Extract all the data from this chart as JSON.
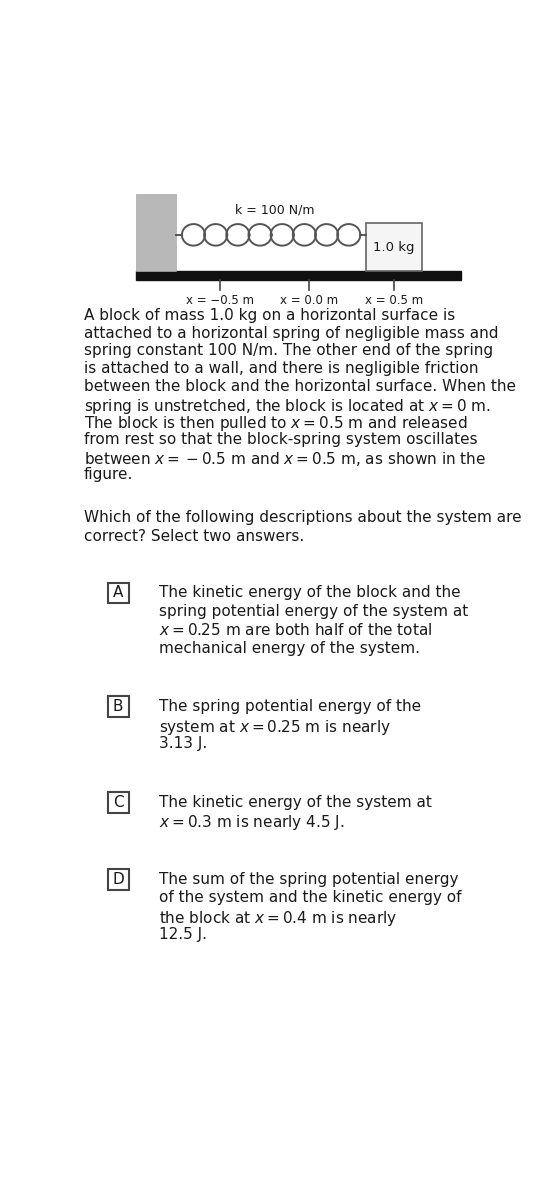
{
  "bg_color": "#ffffff",
  "text_color": "#1a1a1a",
  "diagram": {
    "wall_color": "#b8b8b8",
    "block_color": "#f5f5f5",
    "spring_color": "#555555",
    "floor_color": "#111111",
    "label_k": "k = 100 N/m",
    "label_mass": "1.0 kg",
    "label_x1": "x = −0.5 m",
    "label_x2": "x = 0.0 m",
    "label_x3": "x = 0.5 m"
  },
  "para_lines": [
    "A block of mass 1.0 kg on a horizontal surface is",
    "attached to a horizontal spring of negligible mass and",
    "spring constant 100 N/m. The other end of the spring",
    "is attached to a wall, and there is negligible friction",
    "between the block and the horizontal surface. When the",
    "spring is unstretched, the block is located at $x = 0$ m.",
    "The block is then pulled to $x = 0.5$ m and released",
    "from rest so that the block-spring system oscillates",
    "between $x = -0.5$ m and $x = 0.5$ m, as shown in the",
    "figure."
  ],
  "question_lines": [
    "Which of the following descriptions about the system are",
    "correct? Select two answers."
  ],
  "choices": [
    {
      "label": "A",
      "lines": [
        "The kinetic energy of the block and the",
        "spring potential energy of the system at",
        "$x = 0.25$ m are both half of the total",
        "mechanical energy of the system."
      ]
    },
    {
      "label": "B",
      "lines": [
        "The spring potential energy of the",
        "system at $x = 0.25$ m is nearly",
        "3.13 J."
      ]
    },
    {
      "label": "C",
      "lines": [
        "The kinetic energy of the system at",
        "$x = 0.3$ m is nearly 4.5 J."
      ]
    },
    {
      "label": "D",
      "lines": [
        "The sum of the spring potential energy",
        "of the system and the kinetic energy of",
        "the block at $x = 0.4$ m is nearly",
        "12.5 J."
      ]
    }
  ]
}
